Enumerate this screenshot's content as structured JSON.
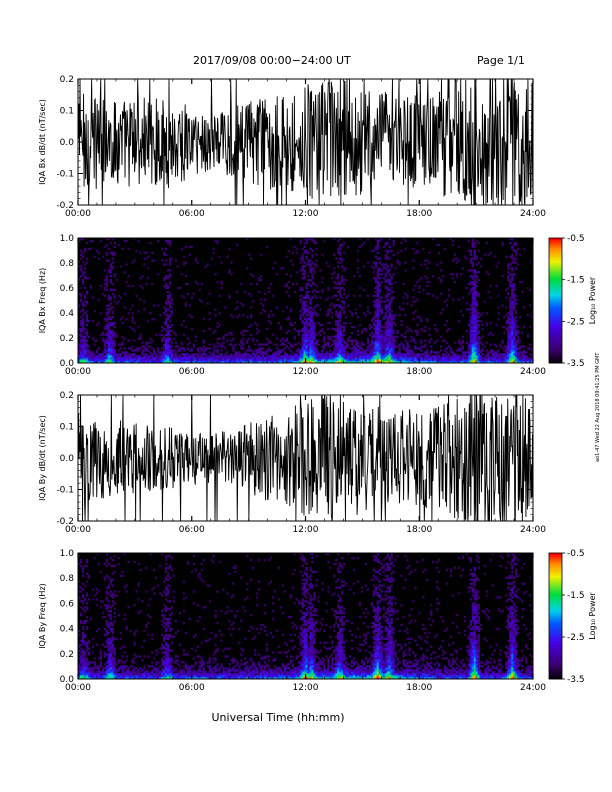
{
  "header": {
    "title": "2017/09/08  00:00−24:00 UT",
    "page": "Page 1/1"
  },
  "footer": {
    "xlabel": "Universal Time (hh:mm)",
    "signature": "ao1-47 Wed 22 Aug 2018 09:41:25 PM GMT"
  },
  "chart_data": [
    {
      "type": "line",
      "ylabel": "IQA Bx dB/dt (nT/sec)",
      "xlim": [
        0,
        24
      ],
      "ylim": [
        -0.2,
        0.2
      ],
      "x_ticks": [
        "00:00",
        "06:00",
        "12:00",
        "18:00",
        "24:00"
      ],
      "y_ticks": [
        "-0.2",
        "-0.1",
        "0.0",
        "0.1",
        "0.2"
      ],
      "y_tick_values": [
        -0.2,
        -0.1,
        0.0,
        0.1,
        0.2
      ],
      "envelope_hours": [
        0,
        1,
        2,
        3,
        4,
        5,
        6,
        7,
        8,
        9,
        10,
        11,
        12,
        13,
        14,
        15,
        16,
        17,
        18,
        19,
        20,
        21,
        22,
        23,
        24
      ],
      "envelope_amplitude": [
        0.14,
        0.12,
        0.11,
        0.12,
        0.11,
        0.12,
        0.09,
        0.085,
        0.09,
        0.11,
        0.12,
        0.13,
        0.15,
        0.16,
        0.17,
        0.14,
        0.13,
        0.12,
        0.13,
        0.13,
        0.16,
        0.2,
        0.17,
        0.19,
        0.16
      ]
    },
    {
      "type": "heatmap",
      "ylabel": "IQA Bx Freq (Hz)",
      "xlim": [
        0,
        24
      ],
      "ylim": [
        0,
        1.0
      ],
      "x_ticks": [
        "00:00",
        "06:00",
        "12:00",
        "18:00",
        "24:00"
      ],
      "y_ticks": [
        "0.0",
        "0.2",
        "0.4",
        "0.6",
        "0.8",
        "1.0"
      ],
      "y_tick_values": [
        0,
        0.2,
        0.4,
        0.6,
        0.8,
        1.0
      ],
      "colorbar": {
        "label": "Log₁₀ Power",
        "range": [
          -3.5,
          -0.5
        ],
        "ticks": [
          "-0.5",
          "-1.5",
          "-2.5",
          "-3.5"
        ],
        "tick_values": [
          -0.5,
          -1.5,
          -2.5,
          -3.5
        ]
      },
      "event_hours": [
        0.3,
        1.7,
        4.7,
        12.0,
        12.3,
        13.8,
        15.8,
        16.4,
        20.9,
        22.9
      ],
      "event_strength": [
        0.45,
        0.6,
        0.5,
        0.8,
        0.7,
        0.55,
        0.8,
        0.7,
        1.0,
        0.95
      ]
    },
    {
      "type": "line",
      "ylabel": "IQA By dB/dt (nT/sec)",
      "xlim": [
        0,
        24
      ],
      "ylim": [
        -0.2,
        0.2
      ],
      "x_ticks": [
        "00:00",
        "06:00",
        "12:00",
        "18:00",
        "24:00"
      ],
      "y_ticks": [
        "-0.2",
        "-0.1",
        "0.0",
        "0.1",
        "0.2"
      ],
      "y_tick_values": [
        -0.2,
        -0.1,
        0.0,
        0.1,
        0.2
      ],
      "envelope_hours": [
        0,
        1,
        2,
        3,
        4,
        5,
        6,
        7,
        8,
        9,
        10,
        11,
        12,
        13,
        14,
        15,
        16,
        17,
        18,
        19,
        20,
        21,
        22,
        23,
        24
      ],
      "envelope_amplitude": [
        0.12,
        0.11,
        0.1,
        0.09,
        0.09,
        0.08,
        0.07,
        0.065,
        0.07,
        0.09,
        0.11,
        0.12,
        0.15,
        0.16,
        0.17,
        0.14,
        0.13,
        0.12,
        0.13,
        0.13,
        0.16,
        0.2,
        0.17,
        0.19,
        0.15
      ]
    },
    {
      "type": "heatmap",
      "ylabel": "IQA By Freq (Hz)",
      "xlim": [
        0,
        24
      ],
      "ylim": [
        0,
        1.0
      ],
      "x_ticks": [
        "00:00",
        "06:00",
        "12:00",
        "18:00",
        "24:00"
      ],
      "y_ticks": [
        "0.0",
        "0.2",
        "0.4",
        "0.6",
        "0.8",
        "1.0"
      ],
      "y_tick_values": [
        0,
        0.2,
        0.4,
        0.6,
        0.8,
        1.0
      ],
      "colorbar": {
        "label": "Log₁₀ Power",
        "range": [
          -3.5,
          -0.5
        ],
        "ticks": [
          "-0.5",
          "-1.5",
          "-2.5",
          "-3.5"
        ],
        "tick_values": [
          -0.5,
          -1.5,
          -2.5,
          -3.5
        ]
      },
      "event_hours": [
        0.3,
        1.7,
        4.7,
        12.0,
        12.3,
        13.8,
        15.8,
        16.4,
        20.9,
        22.9
      ],
      "event_strength": [
        0.45,
        0.6,
        0.5,
        0.8,
        0.7,
        0.55,
        0.8,
        0.7,
        1.0,
        0.95
      ]
    }
  ]
}
